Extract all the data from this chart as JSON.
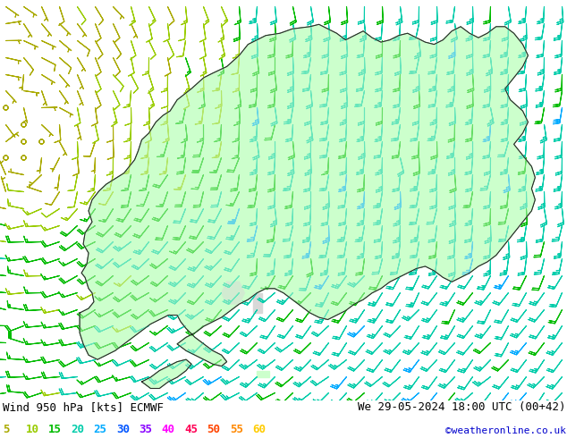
{
  "title_left": "Wind 950 hPa [kts] ECMWF",
  "title_right": "We 29-05-2024 18:00 UTC (00+42)",
  "copyright": "©weatheronline.co.uk",
  "legend_values": [
    5,
    10,
    15,
    20,
    25,
    30,
    35,
    40,
    45,
    50,
    55,
    60
  ],
  "legend_colors": [
    "#aaaa00",
    "#99cc00",
    "#00bb00",
    "#00ccaa",
    "#00aaff",
    "#0055ff",
    "#8800ff",
    "#ff00ff",
    "#ff0055",
    "#ff4400",
    "#ff8800",
    "#ffcc00"
  ],
  "background_color": "#d8d8d8",
  "land_color": "#ccffcc",
  "sea_color": "#d8d8d8",
  "border_color": "#222222",
  "label_color": "#000000",
  "figsize": [
    6.34,
    4.9
  ],
  "dpi": 100,
  "bottom_bar_color": "#ffffff",
  "text_font_size": 9,
  "legend_font_size": 9,
  "map_extent": [
    0,
    32,
    54,
    72
  ]
}
